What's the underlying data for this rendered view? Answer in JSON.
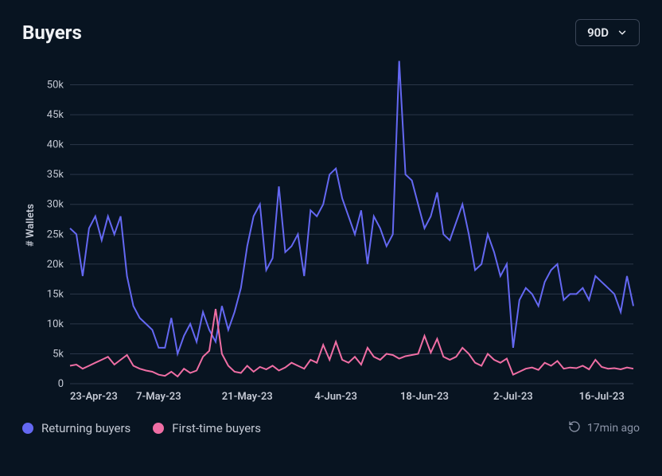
{
  "header": {
    "title": "Buyers",
    "range_label": "90D"
  },
  "chart": {
    "type": "line",
    "background_color": "#081421",
    "grid_color": "#2a3648",
    "text_color": "#c4c9d4",
    "y_axis": {
      "title": "# Wallets",
      "min": 0,
      "max": 53000,
      "ticks": [
        0,
        5000,
        10000,
        15000,
        20000,
        25000,
        30000,
        35000,
        40000,
        45000,
        50000
      ],
      "tick_labels": [
        "0",
        "5k",
        "10k",
        "15k",
        "20k",
        "25k",
        "30k",
        "35k",
        "40k",
        "45k",
        "50k"
      ]
    },
    "x_axis": {
      "labels": [
        "23-Apr-23",
        "7-May-23",
        "21-May-23",
        "4-Jun-23",
        "18-Jun-23",
        "2-Jul-23",
        "16-Jul-23"
      ],
      "label_positions": [
        0,
        14,
        28,
        42,
        56,
        70,
        84
      ],
      "n_points": 90
    },
    "series": [
      {
        "name": "Returning buyers",
        "color": "#6468f2",
        "line_width": 2,
        "values": [
          26000,
          25000,
          18000,
          26000,
          28000,
          24000,
          28000,
          25000,
          28000,
          18000,
          13000,
          11000,
          10000,
          9000,
          6000,
          6000,
          11000,
          5000,
          8000,
          10000,
          7000,
          12000,
          9000,
          7000,
          13000,
          9000,
          12000,
          16000,
          23000,
          28000,
          30000,
          19000,
          21000,
          33000,
          22000,
          23000,
          25000,
          18000,
          29000,
          28000,
          30000,
          35000,
          36000,
          31000,
          28000,
          25000,
          29000,
          20000,
          28000,
          26000,
          23000,
          25000,
          54000,
          35000,
          34000,
          30000,
          26000,
          28000,
          32000,
          25000,
          24000,
          27000,
          30000,
          25000,
          19000,
          20000,
          25000,
          22000,
          18000,
          20000,
          6000,
          14000,
          16000,
          15000,
          13000,
          17000,
          19000,
          20000,
          14000,
          15000,
          15000,
          16000,
          14000,
          18000,
          17000,
          16000,
          15000,
          12000,
          18000,
          13000
        ]
      },
      {
        "name": "First-time buyers",
        "color": "#ef6ea4",
        "line_width": 2,
        "values": [
          3000,
          3200,
          2500,
          3000,
          3500,
          4000,
          4500,
          3200,
          4000,
          4800,
          3000,
          2500,
          2200,
          2000,
          1500,
          1300,
          2000,
          1200,
          2500,
          1800,
          2200,
          4500,
          5500,
          12500,
          5000,
          3000,
          2000,
          1800,
          3000,
          2000,
          2800,
          2400,
          3000,
          2200,
          2700,
          3500,
          3000,
          2500,
          4000,
          3500,
          6500,
          4000,
          7000,
          4000,
          3500,
          4500,
          3200,
          6000,
          4500,
          4000,
          5000,
          4800,
          4200,
          4600,
          4800,
          5000,
          8000,
          5200,
          7500,
          4500,
          4000,
          4500,
          6000,
          5000,
          3500,
          3000,
          5000,
          4000,
          3500,
          4200,
          1500,
          2000,
          2500,
          2700,
          2300,
          3500,
          3000,
          3800,
          2500,
          2700,
          2600,
          3000,
          2400,
          4000,
          2800,
          2500,
          2600,
          2400,
          2700,
          2500
        ]
      }
    ]
  },
  "legend": {
    "items": [
      {
        "label": "Returning buyers",
        "color": "#6468f2"
      },
      {
        "label": "First-time buyers",
        "color": "#ef6ea4"
      }
    ]
  },
  "timestamp": {
    "label": "17min ago"
  }
}
